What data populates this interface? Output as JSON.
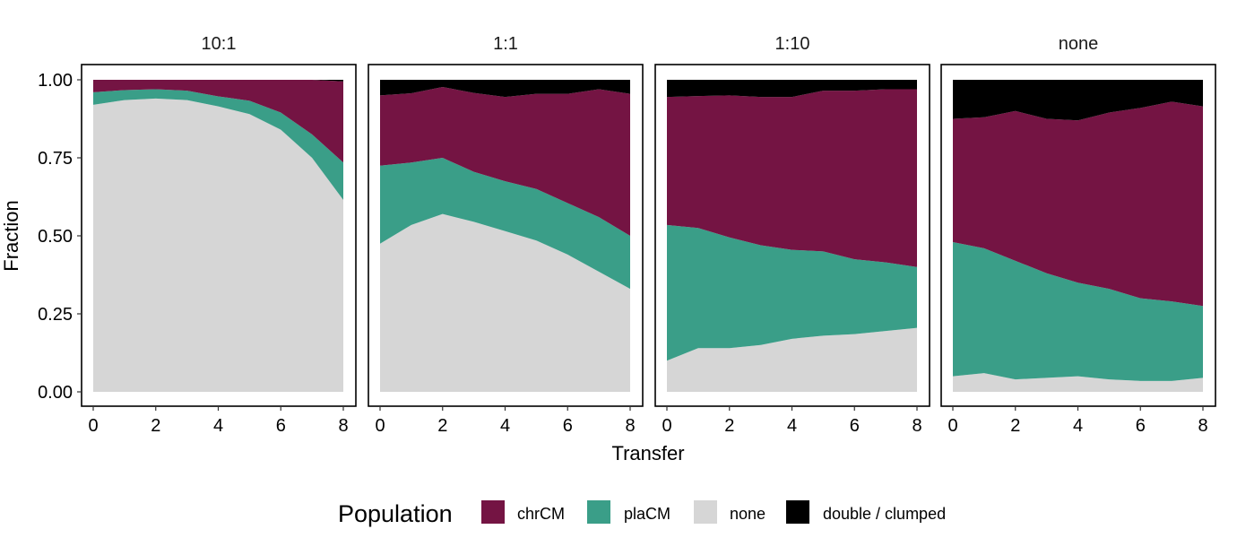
{
  "chart_data": {
    "type": "area",
    "stacking": "stacked fractions (bottom to top: none, plaCM, chrCM, double / clumped)",
    "xlabel": "Transfer",
    "ylabel": "Fraction",
    "x": [
      0,
      1,
      2,
      3,
      4,
      5,
      6,
      7,
      8
    ],
    "xticks": [
      "0",
      "2",
      "4",
      "6",
      "8"
    ],
    "xticks_values": [
      0,
      2,
      4,
      6,
      8
    ],
    "yticks": [
      "0.00",
      "0.25",
      "0.50",
      "0.75",
      "1.00"
    ],
    "yticks_values": [
      0,
      0.25,
      0.5,
      0.75,
      1.0
    ],
    "xlim": [
      0,
      8
    ],
    "ylim": [
      0,
      1
    ],
    "grid": false,
    "legend": {
      "title": "Population",
      "position": "bottom",
      "items": [
        {
          "label": "chrCM",
          "color": "#741443"
        },
        {
          "label": "plaCM",
          "color": "#3a9e88"
        },
        {
          "label": "none",
          "color": "#d6d6d6"
        },
        {
          "label": "double / clumped",
          "color": "#000000"
        }
      ]
    },
    "stack_order": [
      "none",
      "plaCM",
      "chrCM",
      "double / clumped"
    ],
    "series_colors": {
      "none": "#d6d6d6",
      "plaCM": "#3a9e88",
      "chrCM": "#741443",
      "double / clumped": "#000000"
    },
    "panels": [
      {
        "label": "10:1",
        "series": [
          {
            "name": "none",
            "values": [
              0.92,
              0.935,
              0.94,
              0.935,
              0.915,
              0.89,
              0.84,
              0.75,
              0.615
            ]
          },
          {
            "name": "plaCM",
            "values": [
              0.04,
              0.032,
              0.03,
              0.03,
              0.032,
              0.043,
              0.055,
              0.075,
              0.12
            ]
          },
          {
            "name": "chrCM",
            "values": [
              0.04,
              0.033,
              0.03,
              0.035,
              0.053,
              0.067,
              0.105,
              0.175,
              0.26
            ]
          },
          {
            "name": "double / clumped",
            "values": [
              0,
              0,
              0,
              0,
              0,
              0,
              0,
              0,
              0.005
            ]
          }
        ]
      },
      {
        "label": "1:1",
        "series": [
          {
            "name": "none",
            "values": [
              0.475,
              0.535,
              0.57,
              0.545,
              0.515,
              0.485,
              0.44,
              0.385,
              0.33
            ]
          },
          {
            "name": "plaCM",
            "values": [
              0.25,
              0.2,
              0.18,
              0.16,
              0.16,
              0.165,
              0.165,
              0.175,
              0.17
            ]
          },
          {
            "name": "chrCM",
            "values": [
              0.225,
              0.222,
              0.227,
              0.253,
              0.27,
              0.305,
              0.35,
              0.41,
              0.455
            ]
          },
          {
            "name": "double / clumped",
            "values": [
              0.05,
              0.043,
              0.023,
              0.042,
              0.055,
              0.045,
              0.045,
              0.03,
              0.045
            ]
          }
        ]
      },
      {
        "label": "1:10",
        "series": [
          {
            "name": "none",
            "values": [
              0.1,
              0.14,
              0.14,
              0.15,
              0.17,
              0.18,
              0.185,
              0.195,
              0.205
            ]
          },
          {
            "name": "plaCM",
            "values": [
              0.435,
              0.385,
              0.355,
              0.32,
              0.285,
              0.27,
              0.24,
              0.22,
              0.195
            ]
          },
          {
            "name": "chrCM",
            "values": [
              0.41,
              0.423,
              0.455,
              0.475,
              0.49,
              0.515,
              0.54,
              0.555,
              0.57
            ]
          },
          {
            "name": "double / clumped",
            "values": [
              0.055,
              0.052,
              0.05,
              0.055,
              0.055,
              0.035,
              0.035,
              0.03,
              0.03
            ]
          }
        ]
      },
      {
        "label": "none",
        "series": [
          {
            "name": "none",
            "values": [
              0.05,
              0.06,
              0.04,
              0.045,
              0.05,
              0.04,
              0.035,
              0.035,
              0.045
            ]
          },
          {
            "name": "plaCM",
            "values": [
              0.43,
              0.4,
              0.38,
              0.335,
              0.3,
              0.29,
              0.265,
              0.255,
              0.23
            ]
          },
          {
            "name": "chrCM",
            "values": [
              0.395,
              0.42,
              0.48,
              0.495,
              0.52,
              0.565,
              0.61,
              0.64,
              0.64
            ]
          },
          {
            "name": "double / clumped",
            "values": [
              0.125,
              0.12,
              0.1,
              0.125,
              0.13,
              0.105,
              0.09,
              0.07,
              0.085
            ]
          }
        ]
      }
    ]
  }
}
